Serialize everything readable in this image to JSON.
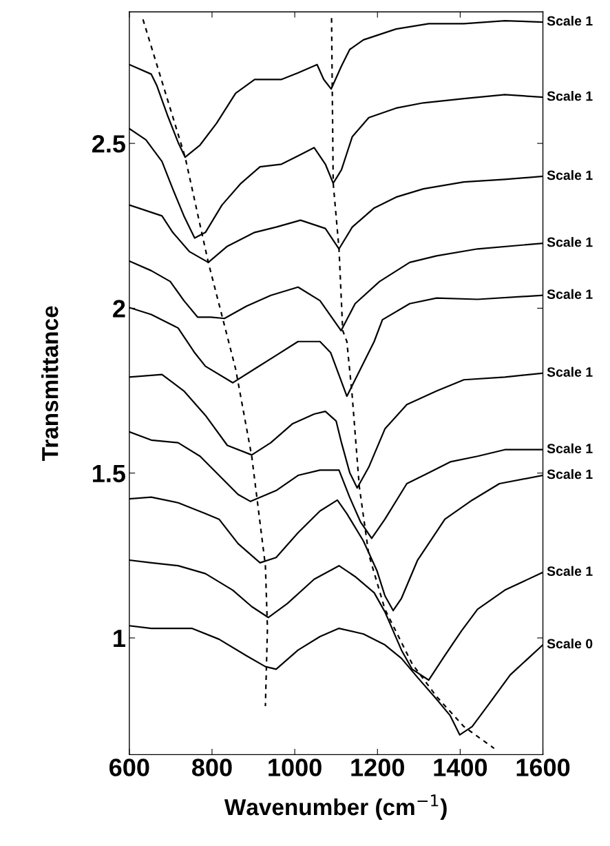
{
  "chart_data": {
    "type": "line",
    "xlabel": "Wavenumber (cm$^{−1}$)",
    "ylabel": "Transmittance",
    "legend": "right",
    "xlim": [
      600,
      1600
    ],
    "xticks": [
      600,
      800,
      1000,
      1200,
      1400,
      1600
    ],
    "ylim": [
      0.646,
      2.899
    ],
    "yticks": [
      1,
      1.5,
      2,
      2.5
    ],
    "series": [
      {
        "name": "Scale 1",
        "color": "#000000",
        "x": [
          600,
          653,
          666,
          692,
          718,
          735,
          771,
          811,
          857,
          903,
          968,
          1008,
          1054,
          1070,
          1088,
          1113,
          1133,
          1166,
          1245,
          1324,
          1409,
          1508,
          1600
        ],
        "values": [
          2.739,
          2.71,
          2.677,
          2.586,
          2.503,
          2.458,
          2.495,
          2.561,
          2.652,
          2.694,
          2.694,
          2.714,
          2.739,
          2.694,
          2.665,
          2.735,
          2.785,
          2.814,
          2.847,
          2.863,
          2.863,
          2.872,
          2.868
        ]
      },
      {
        "name": "Scale 1",
        "color": "#000000",
        "x": [
          600,
          640,
          679,
          705,
          732,
          758,
          784,
          824,
          870,
          916,
          968,
          1008,
          1047,
          1074,
          1093,
          1113,
          1139,
          1179,
          1245,
          1311,
          1409,
          1508,
          1600
        ],
        "values": [
          2.545,
          2.511,
          2.445,
          2.362,
          2.28,
          2.213,
          2.23,
          2.313,
          2.379,
          2.429,
          2.437,
          2.462,
          2.487,
          2.437,
          2.379,
          2.42,
          2.52,
          2.578,
          2.607,
          2.623,
          2.636,
          2.648,
          2.64
        ]
      },
      {
        "name": "Scale 1",
        "color": "#000000",
        "x": [
          600,
          679,
          705,
          745,
          791,
          837,
          903,
          955,
          1014,
          1074,
          1107,
          1139,
          1192,
          1245,
          1311,
          1409,
          1508,
          1600
        ],
        "values": [
          2.313,
          2.28,
          2.23,
          2.172,
          2.139,
          2.188,
          2.23,
          2.246,
          2.267,
          2.242,
          2.18,
          2.246,
          2.304,
          2.337,
          2.362,
          2.383,
          2.391,
          2.4
        ]
      },
      {
        "name": "Scale 1",
        "color": "#000000",
        "x": [
          600,
          653,
          699,
          732,
          765,
          797,
          830,
          883,
          942,
          1008,
          1061,
          1112,
          1146,
          1205,
          1278,
          1343,
          1442,
          1600
        ],
        "values": [
          2.143,
          2.114,
          2.081,
          2.023,
          1.973,
          1.973,
          1.969,
          2.006,
          2.039,
          2.064,
          2.023,
          1.932,
          2.014,
          2.081,
          2.139,
          2.159,
          2.18,
          2.197
        ]
      },
      {
        "name": "Scale 1",
        "color": "#000000",
        "x": [
          600,
          653,
          718,
          758,
          784,
          850,
          903,
          955,
          1008,
          1061,
          1087,
          1126,
          1159,
          1192,
          1212,
          1278,
          1343,
          1442,
          1600
        ],
        "values": [
          2.002,
          1.981,
          1.94,
          1.865,
          1.824,
          1.774,
          1.816,
          1.857,
          1.899,
          1.899,
          1.865,
          1.733,
          1.816,
          1.899,
          1.965,
          2.014,
          2.031,
          2.027,
          2.039
        ]
      },
      {
        "name": "Scale 1",
        "color": "#000000",
        "x": [
          600,
          679,
          732,
          784,
          837,
          896,
          942,
          995,
          1047,
          1074,
          1100,
          1113,
          1133,
          1151,
          1179,
          1218,
          1271,
          1343,
          1409,
          1508,
          1600
        ],
        "values": [
          1.791,
          1.799,
          1.749,
          1.675,
          1.584,
          1.555,
          1.592,
          1.65,
          1.679,
          1.687,
          1.658,
          1.592,
          1.501,
          1.455,
          1.518,
          1.634,
          1.708,
          1.749,
          1.783,
          1.791,
          1.803
        ]
      },
      {
        "name": "Scale 1",
        "color": "#000000",
        "x": [
          600,
          653,
          718,
          771,
          817,
          863,
          893,
          955,
          1008,
          1061,
          1107,
          1133,
          1159,
          1186,
          1218,
          1271,
          1324,
          1376,
          1442,
          1508,
          1600
        ],
        "values": [
          1.625,
          1.6,
          1.592,
          1.551,
          1.493,
          1.435,
          1.414,
          1.447,
          1.493,
          1.509,
          1.509,
          1.426,
          1.352,
          1.302,
          1.36,
          1.468,
          1.501,
          1.534,
          1.551,
          1.571,
          1.571
        ]
      },
      {
        "name": "Scale 1",
        "color": "#000000",
        "x": [
          600,
          653,
          718,
          784,
          817,
          863,
          916,
          955,
          1008,
          1061,
          1103,
          1126,
          1166,
          1199,
          1218,
          1238,
          1258,
          1297,
          1363,
          1429,
          1495,
          1600
        ],
        "values": [
          1.422,
          1.427,
          1.41,
          1.377,
          1.36,
          1.286,
          1.228,
          1.244,
          1.319,
          1.385,
          1.418,
          1.377,
          1.294,
          1.203,
          1.128,
          1.083,
          1.12,
          1.236,
          1.36,
          1.418,
          1.468,
          1.493
        ]
      },
      {
        "name": "Scale 1",
        "color": "#000000",
        "x": [
          600,
          653,
          718,
          784,
          850,
          896,
          936,
          982,
          1047,
          1107,
          1146,
          1192,
          1218,
          1258,
          1284,
          1324,
          1363,
          1403,
          1442,
          1508,
          1600
        ],
        "values": [
          1.236,
          1.228,
          1.219,
          1.195,
          1.145,
          1.095,
          1.062,
          1.104,
          1.178,
          1.219,
          1.186,
          1.137,
          1.079,
          0.963,
          0.905,
          0.872,
          0.947,
          1.021,
          1.087,
          1.145,
          1.199
        ]
      },
      {
        "name": "Scale 0",
        "color": "#000000",
        "x": [
          600,
          653,
          751,
          817,
          883,
          929,
          955,
          1008,
          1061,
          1107,
          1166,
          1218,
          1258,
          1297,
          1343,
          1376,
          1399,
          1429,
          1468,
          1521,
          1600
        ],
        "values": [
          1.037,
          1.029,
          1.029,
          0.996,
          0.946,
          0.913,
          0.905,
          0.963,
          1.004,
          1.029,
          1.012,
          0.979,
          0.938,
          0.88,
          0.814,
          0.764,
          0.706,
          0.731,
          0.797,
          0.888,
          0.979
        ]
      },
      {
        "color": "#000000",
        "line_style": "dashed",
        "x": [
          633,
          735,
          791,
          857,
          896,
          929,
          934,
          929
        ],
        "values": [
          2.876,
          2.458,
          2.139,
          1.816,
          1.551,
          1.219,
          1.029,
          0.793
        ]
      },
      {
        "color": "#000000",
        "line_style": "dashed",
        "x": [
          1089,
          1093,
          1107,
          1116,
          1126,
          1139,
          1156,
          1179,
          1218,
          1284,
          1343,
          1409,
          1482
        ],
        "values": [
          2.88,
          2.379,
          2.18,
          1.932,
          1.899,
          1.733,
          1.46,
          1.253,
          1.087,
          0.921,
          0.822,
          0.731,
          0.665
        ]
      }
    ]
  }
}
